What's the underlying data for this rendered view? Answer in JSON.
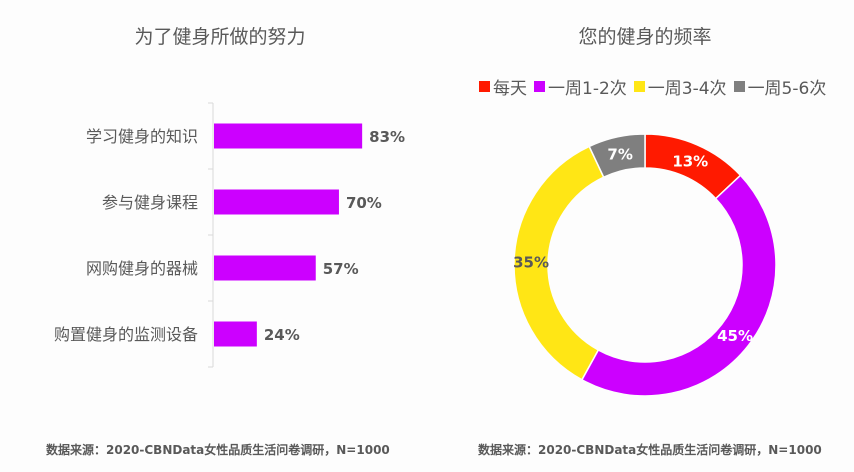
{
  "chart_data": [
    {
      "type": "bar",
      "orientation": "horizontal",
      "title": "为了健身所做的努力",
      "categories": [
        "学习健身的知识",
        "参与健身课程",
        "网购健身的器械",
        "购置健身的监测设备"
      ],
      "values": [
        83,
        70,
        57,
        24
      ],
      "value_labels": [
        "83%",
        "70%",
        "57%",
        "24%"
      ],
      "unit": "%",
      "color": "#cc00ff",
      "xlim": [
        0,
        100
      ],
      "grid": false
    },
    {
      "type": "pie",
      "donut": true,
      "title": "您的健身的频率",
      "legend_position": "top",
      "slices": [
        {
          "name": "每天",
          "value": 13,
          "label": "13%",
          "color": "#ff1a00"
        },
        {
          "name": "一周1-2次",
          "value": 45,
          "label": "45%",
          "color": "#cc00ff"
        },
        {
          "name": "一周3-4次",
          "value": 35,
          "label": "35%",
          "color": "#ffe615"
        },
        {
          "name": "一周5-6次",
          "value": 7,
          "label": "7%",
          "color": "#7f7f7f"
        }
      ]
    }
  ],
  "source_left": "数据来源：2020-CBNData女性品质生活问卷调研，N=1000",
  "source_right": "数据来源：2020-CBNData女性品质生活问卷调研，N=1000"
}
